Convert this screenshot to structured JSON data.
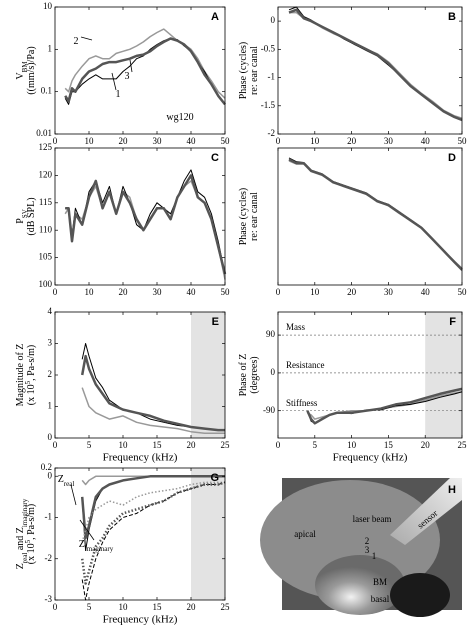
{
  "chart_data": [
    {
      "type": "line",
      "label": "A",
      "ylog": true,
      "ylabel": [
        [
          {
            "text": "V"
          },
          {
            "text": "BM",
            "sub": true
          }
        ],
        [
          {
            "text": "((mm/s)/Pa)"
          }
        ]
      ],
      "annotations": [
        [
          {
            "text": "2"
          }
        ],
        [
          {
            "text": "3"
          }
        ],
        [
          {
            "text": "1"
          }
        ],
        [
          {
            "text": "wg120"
          }
        ]
      ],
      "x": [
        3,
        4,
        5,
        6,
        8,
        10,
        12,
        14,
        16,
        18,
        20,
        22,
        24,
        26,
        28,
        30,
        32,
        34,
        36,
        38,
        40,
        42,
        44,
        46,
        48,
        50
      ],
      "xlim": [
        0,
        50
      ],
      "xticks": [
        0,
        10,
        20,
        30,
        40,
        50
      ],
      "ylim": [
        0.01,
        10
      ],
      "yticks": [
        0.01,
        0.1,
        1,
        10
      ],
      "series": [
        {
          "color": "#999999",
          "width": 1.5,
          "values": [
            0.12,
            0.1,
            0.18,
            0.25,
            0.4,
            0.6,
            0.7,
            0.6,
            0.6,
            0.8,
            0.9,
            1.0,
            1.2,
            1.5,
            2.0,
            2.5,
            3.0,
            2.2,
            1.6,
            1.3,
            1.0,
            0.6,
            0.3,
            0.18,
            0.1,
            0.07
          ]
        },
        {
          "color": "#000000",
          "width": 1,
          "values": [
            0.07,
            0.05,
            0.1,
            0.1,
            0.15,
            0.2,
            0.25,
            0.2,
            0.2,
            0.2,
            0.3,
            0.4,
            0.6,
            0.7,
            1.0,
            1.3,
            1.6,
            1.8,
            1.7,
            1.2,
            0.9,
            0.5,
            0.3,
            0.15,
            0.08,
            0.05
          ]
        },
        {
          "color": "#555555",
          "width": 2.5,
          "values": [
            0.08,
            0.06,
            0.12,
            0.1,
            0.2,
            0.3,
            0.35,
            0.45,
            0.5,
            0.5,
            0.55,
            0.6,
            0.7,
            0.75,
            0.9,
            1.2,
            1.5,
            1.8,
            1.6,
            1.3,
            0.9,
            0.5,
            0.25,
            0.15,
            0.08,
            0.05
          ]
        }
      ]
    },
    {
      "type": "line",
      "label": "B",
      "ylabel": [
        [
          {
            "text": "Phase (cycles)"
          }
        ],
        [
          {
            "text": "re: ear canal"
          }
        ]
      ],
      "x": [
        3,
        5,
        7,
        9,
        12,
        15,
        18,
        21,
        24,
        27,
        30,
        33,
        36,
        39,
        42,
        45,
        48,
        50
      ],
      "xlim": [
        0,
        50
      ],
      "xticks": [
        0,
        10,
        20,
        30,
        40,
        50
      ],
      "ylim": [
        -2,
        0.25
      ],
      "yticks": [
        -2,
        -1.5,
        -1,
        -0.5,
        0
      ],
      "series": [
        {
          "color": "#999999",
          "width": 1.5,
          "values": [
            0.15,
            0.15,
            0.05,
            0.0,
            -0.12,
            -0.22,
            -0.3,
            -0.42,
            -0.5,
            -0.58,
            -0.72,
            -0.92,
            -1.12,
            -1.28,
            -1.42,
            -1.58,
            -1.68,
            -1.72
          ]
        },
        {
          "color": "#000000",
          "width": 1,
          "values": [
            0.2,
            0.25,
            0.08,
            0.02,
            -0.1,
            -0.2,
            -0.32,
            -0.42,
            -0.52,
            -0.62,
            -0.78,
            -0.95,
            -1.15,
            -1.3,
            -1.45,
            -1.6,
            -1.7,
            -1.75
          ]
        },
        {
          "color": "#555555",
          "width": 2.5,
          "values": [
            0.15,
            0.2,
            0.05,
            0.0,
            -0.1,
            -0.2,
            -0.3,
            -0.4,
            -0.5,
            -0.6,
            -0.75,
            -0.95,
            -1.15,
            -1.3,
            -1.45,
            -1.6,
            -1.7,
            -1.75
          ]
        }
      ]
    },
    {
      "type": "line",
      "label": "C",
      "ylabel": [
        [
          {
            "text": "P"
          },
          {
            "text": "SV",
            "sub": true
          }
        ],
        [
          {
            "text": "(dB SPL)"
          }
        ]
      ],
      "x": [
        3,
        4,
        5,
        6,
        8,
        10,
        12,
        14,
        16,
        18,
        20,
        22,
        24,
        26,
        28,
        30,
        32,
        34,
        36,
        38,
        40,
        42,
        44,
        46,
        48,
        50
      ],
      "xlim": [
        0,
        50
      ],
      "xticks": [
        0,
        10,
        20,
        30,
        40,
        50
      ],
      "ylim": [
        100,
        125
      ],
      "yticks": [
        100,
        105,
        110,
        115,
        120,
        125
      ],
      "series": [
        {
          "color": "#999999",
          "width": 1.5,
          "values": [
            113,
            114,
            109,
            113,
            112,
            116,
            118,
            114,
            117,
            113,
            117,
            116,
            112,
            110,
            112,
            114,
            114,
            112,
            116,
            118,
            119,
            116,
            115,
            112,
            107,
            101
          ]
        },
        {
          "color": "#000000",
          "width": 1,
          "values": [
            114,
            114,
            109,
            114,
            111,
            117,
            119,
            115,
            118,
            113,
            118,
            115,
            111,
            110,
            113,
            115,
            114,
            113,
            116,
            119,
            121,
            117,
            116,
            113,
            108,
            102
          ]
        },
        {
          "color": "#555555",
          "width": 2.5,
          "values": [
            114,
            114,
            108,
            113,
            111,
            116,
            119,
            114,
            117,
            113,
            117,
            115,
            112,
            110,
            112,
            114,
            114,
            112,
            116,
            118,
            120,
            116,
            115,
            112,
            107,
            102
          ]
        }
      ]
    },
    {
      "type": "line",
      "label": "D",
      "ylabel": [
        [
          {
            "text": "Phase (cycles)"
          }
        ],
        [
          {
            "text": "re: ear canal"
          }
        ]
      ],
      "x": [
        3,
        5,
        7,
        9,
        12,
        15,
        18,
        21,
        24,
        27,
        30,
        33,
        36,
        39,
        42,
        45,
        48,
        50
      ],
      "xlim": [
        0,
        50
      ],
      "xticks": [
        0,
        10,
        20,
        30,
        40,
        50
      ],
      "ylim": [
        -0.75,
        1.05
      ],
      "series": [
        {
          "color": "#999999",
          "width": 1.5,
          "values": [
            0.88,
            0.84,
            0.84,
            0.74,
            0.69,
            0.6,
            0.54,
            0.49,
            0.44,
            0.35,
            0.29,
            0.19,
            0.1,
            0.0,
            -0.15,
            -0.3,
            -0.44,
            -0.53
          ]
        },
        {
          "color": "#000000",
          "width": 1,
          "values": [
            0.92,
            0.87,
            0.86,
            0.76,
            0.71,
            0.61,
            0.56,
            0.51,
            0.46,
            0.36,
            0.31,
            0.21,
            0.11,
            0.01,
            -0.14,
            -0.31,
            -0.46,
            -0.56
          ]
        },
        {
          "color": "#555555",
          "width": 2.5,
          "values": [
            0.9,
            0.85,
            0.85,
            0.75,
            0.7,
            0.6,
            0.55,
            0.5,
            0.45,
            0.35,
            0.3,
            0.2,
            0.1,
            0.0,
            -0.15,
            -0.3,
            -0.45,
            -0.55
          ]
        }
      ]
    },
    {
      "type": "line",
      "label": "E",
      "xlabel": "Frequency (kHz)",
      "shaded": [
        20,
        25
      ],
      "ylabel": [
        [
          {
            "text": "Magnitude of Z"
          }
        ],
        [
          {
            "text": "(x 10"
          },
          {
            "text": "5",
            "sup": true
          },
          {
            "text": ", Pa-s/m)"
          }
        ]
      ],
      "x": [
        4,
        4.5,
        5,
        6,
        7,
        8,
        10,
        12,
        14,
        16,
        18,
        20,
        22,
        24,
        25
      ],
      "xlim": [
        0,
        25
      ],
      "xticks": [
        0,
        5,
        10,
        15,
        20,
        25
      ],
      "ylim": [
        0,
        4
      ],
      "yticks": [
        0,
        1,
        2,
        3,
        4
      ],
      "series": [
        {
          "color": "#999999",
          "width": 1.5,
          "values": [
            1.6,
            1.3,
            1.0,
            0.8,
            0.7,
            0.6,
            0.7,
            0.5,
            0.4,
            0.35,
            0.3,
            0.2,
            0.15,
            0.15,
            0.15
          ]
        },
        {
          "color": "#000000",
          "width": 1,
          "values": [
            2.5,
            3.0,
            2.6,
            1.9,
            1.6,
            1.2,
            0.9,
            0.8,
            0.6,
            0.5,
            0.4,
            0.35,
            0.3,
            0.25,
            0.25
          ]
        },
        {
          "color": "#555555",
          "width": 2.5,
          "values": [
            2.0,
            2.6,
            2.2,
            1.7,
            1.4,
            1.1,
            0.9,
            0.8,
            0.7,
            0.55,
            0.45,
            0.35,
            0.3,
            0.25,
            0.25
          ]
        }
      ]
    },
    {
      "type": "line",
      "label": "F",
      "xlabel": "Frequency (kHz)",
      "shaded": [
        20,
        25
      ],
      "ylabel": [
        [
          {
            "text": "Phase of Z"
          }
        ],
        [
          {
            "text": "(degrees)"
          }
        ]
      ],
      "hlines": [
        {
          "value": 90,
          "label": "Mass"
        },
        {
          "value": 0,
          "label": "Resistance"
        },
        {
          "value": -90,
          "label": "Stiffness"
        }
      ],
      "x": [
        4,
        4.5,
        5,
        6,
        7,
        8,
        10,
        12,
        14,
        16,
        18,
        20,
        22,
        24,
        25
      ],
      "xlim": [
        0,
        25
      ],
      "xticks": [
        0,
        5,
        10,
        15,
        20,
        25
      ],
      "ylim": [
        -155,
        145
      ],
      "yticks": [
        -90,
        0,
        90
      ],
      "series": [
        {
          "color": "#999999",
          "width": 1.5,
          "values": [
            -95,
            -100,
            -110,
            -105,
            -100,
            -95,
            -90,
            -90,
            -85,
            -80,
            -75,
            -65,
            -55,
            -48,
            -45
          ]
        },
        {
          "color": "#000000",
          "width": 1,
          "values": [
            -90,
            -115,
            -120,
            -108,
            -100,
            -95,
            -97,
            -88,
            -88,
            -78,
            -75,
            -68,
            -58,
            -50,
            -45
          ]
        },
        {
          "color": "#555555",
          "width": 2.5,
          "values": [
            -90,
            -110,
            -120,
            -110,
            -100,
            -95,
            -95,
            -90,
            -85,
            -75,
            -70,
            -60,
            -50,
            -42,
            -38
          ]
        }
      ]
    },
    {
      "type": "line",
      "label": "G",
      "xlabel": "Frequency (kHz)",
      "shaded": [
        20,
        25
      ],
      "ylabel": [
        [
          {
            "text": "Z"
          },
          {
            "text": "real",
            "sub": true
          },
          {
            "text": " and Z"
          },
          {
            "text": "imaginary",
            "sub": true
          }
        ],
        [
          {
            "text": "(x 10"
          },
          {
            "text": "5",
            "sup": true
          },
          {
            "text": ", Pa-s/m)"
          }
        ]
      ],
      "annotations": [
        [
          {
            "text": "Z"
          },
          {
            "text": "real",
            "sub": true
          }
        ],
        [
          {
            "text": "Z"
          },
          {
            "text": "imaginary",
            "sub": true
          }
        ]
      ],
      "x": [
        4,
        4.5,
        5,
        6,
        7,
        8,
        10,
        12,
        14,
        16,
        18,
        20,
        22,
        24,
        25
      ],
      "xlim": [
        0,
        25
      ],
      "xticks": [
        0,
        5,
        10,
        15,
        20,
        25
      ],
      "ylim": [
        -3,
        0.2
      ],
      "yticks": [
        -3,
        -2,
        -1,
        0,
        0.2
      ],
      "series": [
        {
          "color": "#999999",
          "width": 1.5,
          "values": [
            -0.1,
            -0.2,
            -0.1,
            0,
            0,
            0,
            0,
            0,
            0,
            0,
            0,
            0,
            0,
            0,
            0
          ]
        },
        {
          "color": "#000000",
          "width": 1,
          "values": [
            -0.6,
            -1.8,
            -1.3,
            -0.6,
            -0.3,
            -0.2,
            -0.1,
            -0.05,
            0,
            0,
            0,
            0,
            0,
            0,
            0
          ]
        },
        {
          "color": "#555555",
          "width": 2.5,
          "values": [
            -0.5,
            -1.5,
            -1.2,
            -0.5,
            -0.3,
            -0.2,
            -0.1,
            -0.05,
            0,
            0,
            0,
            0,
            0,
            0,
            0
          ]
        },
        {
          "color": "#999999",
          "width": 1.5,
          "dash": "dotted",
          "values": [
            -1.6,
            -1.3,
            -1.0,
            -0.8,
            -0.7,
            -0.6,
            -0.7,
            -0.5,
            -0.4,
            -0.35,
            -0.3,
            -0.2,
            -0.15,
            -0.15,
            -0.15
          ]
        },
        {
          "color": "#000000",
          "width": 1,
          "dash": "dashed",
          "values": [
            -2.5,
            -3.0,
            -2.6,
            -2.0,
            -1.6,
            -1.3,
            -1.0,
            -0.9,
            -0.7,
            -0.6,
            -0.4,
            -0.3,
            -0.2,
            -0.2,
            -0.15
          ]
        },
        {
          "color": "#555555",
          "width": 2.5,
          "dash": "dotted",
          "values": [
            -2.0,
            -2.6,
            -2.3,
            -1.7,
            -1.5,
            -1.2,
            -0.9,
            -0.8,
            -0.7,
            -0.6,
            -0.4,
            -0.3,
            -0.2,
            -0.2,
            -0.15
          ]
        }
      ]
    }
  ],
  "photo": {
    "label": "H",
    "texts": [
      "apical",
      "laser beam",
      "sensor",
      "2",
      "3",
      "1",
      "BM",
      "basal"
    ]
  }
}
